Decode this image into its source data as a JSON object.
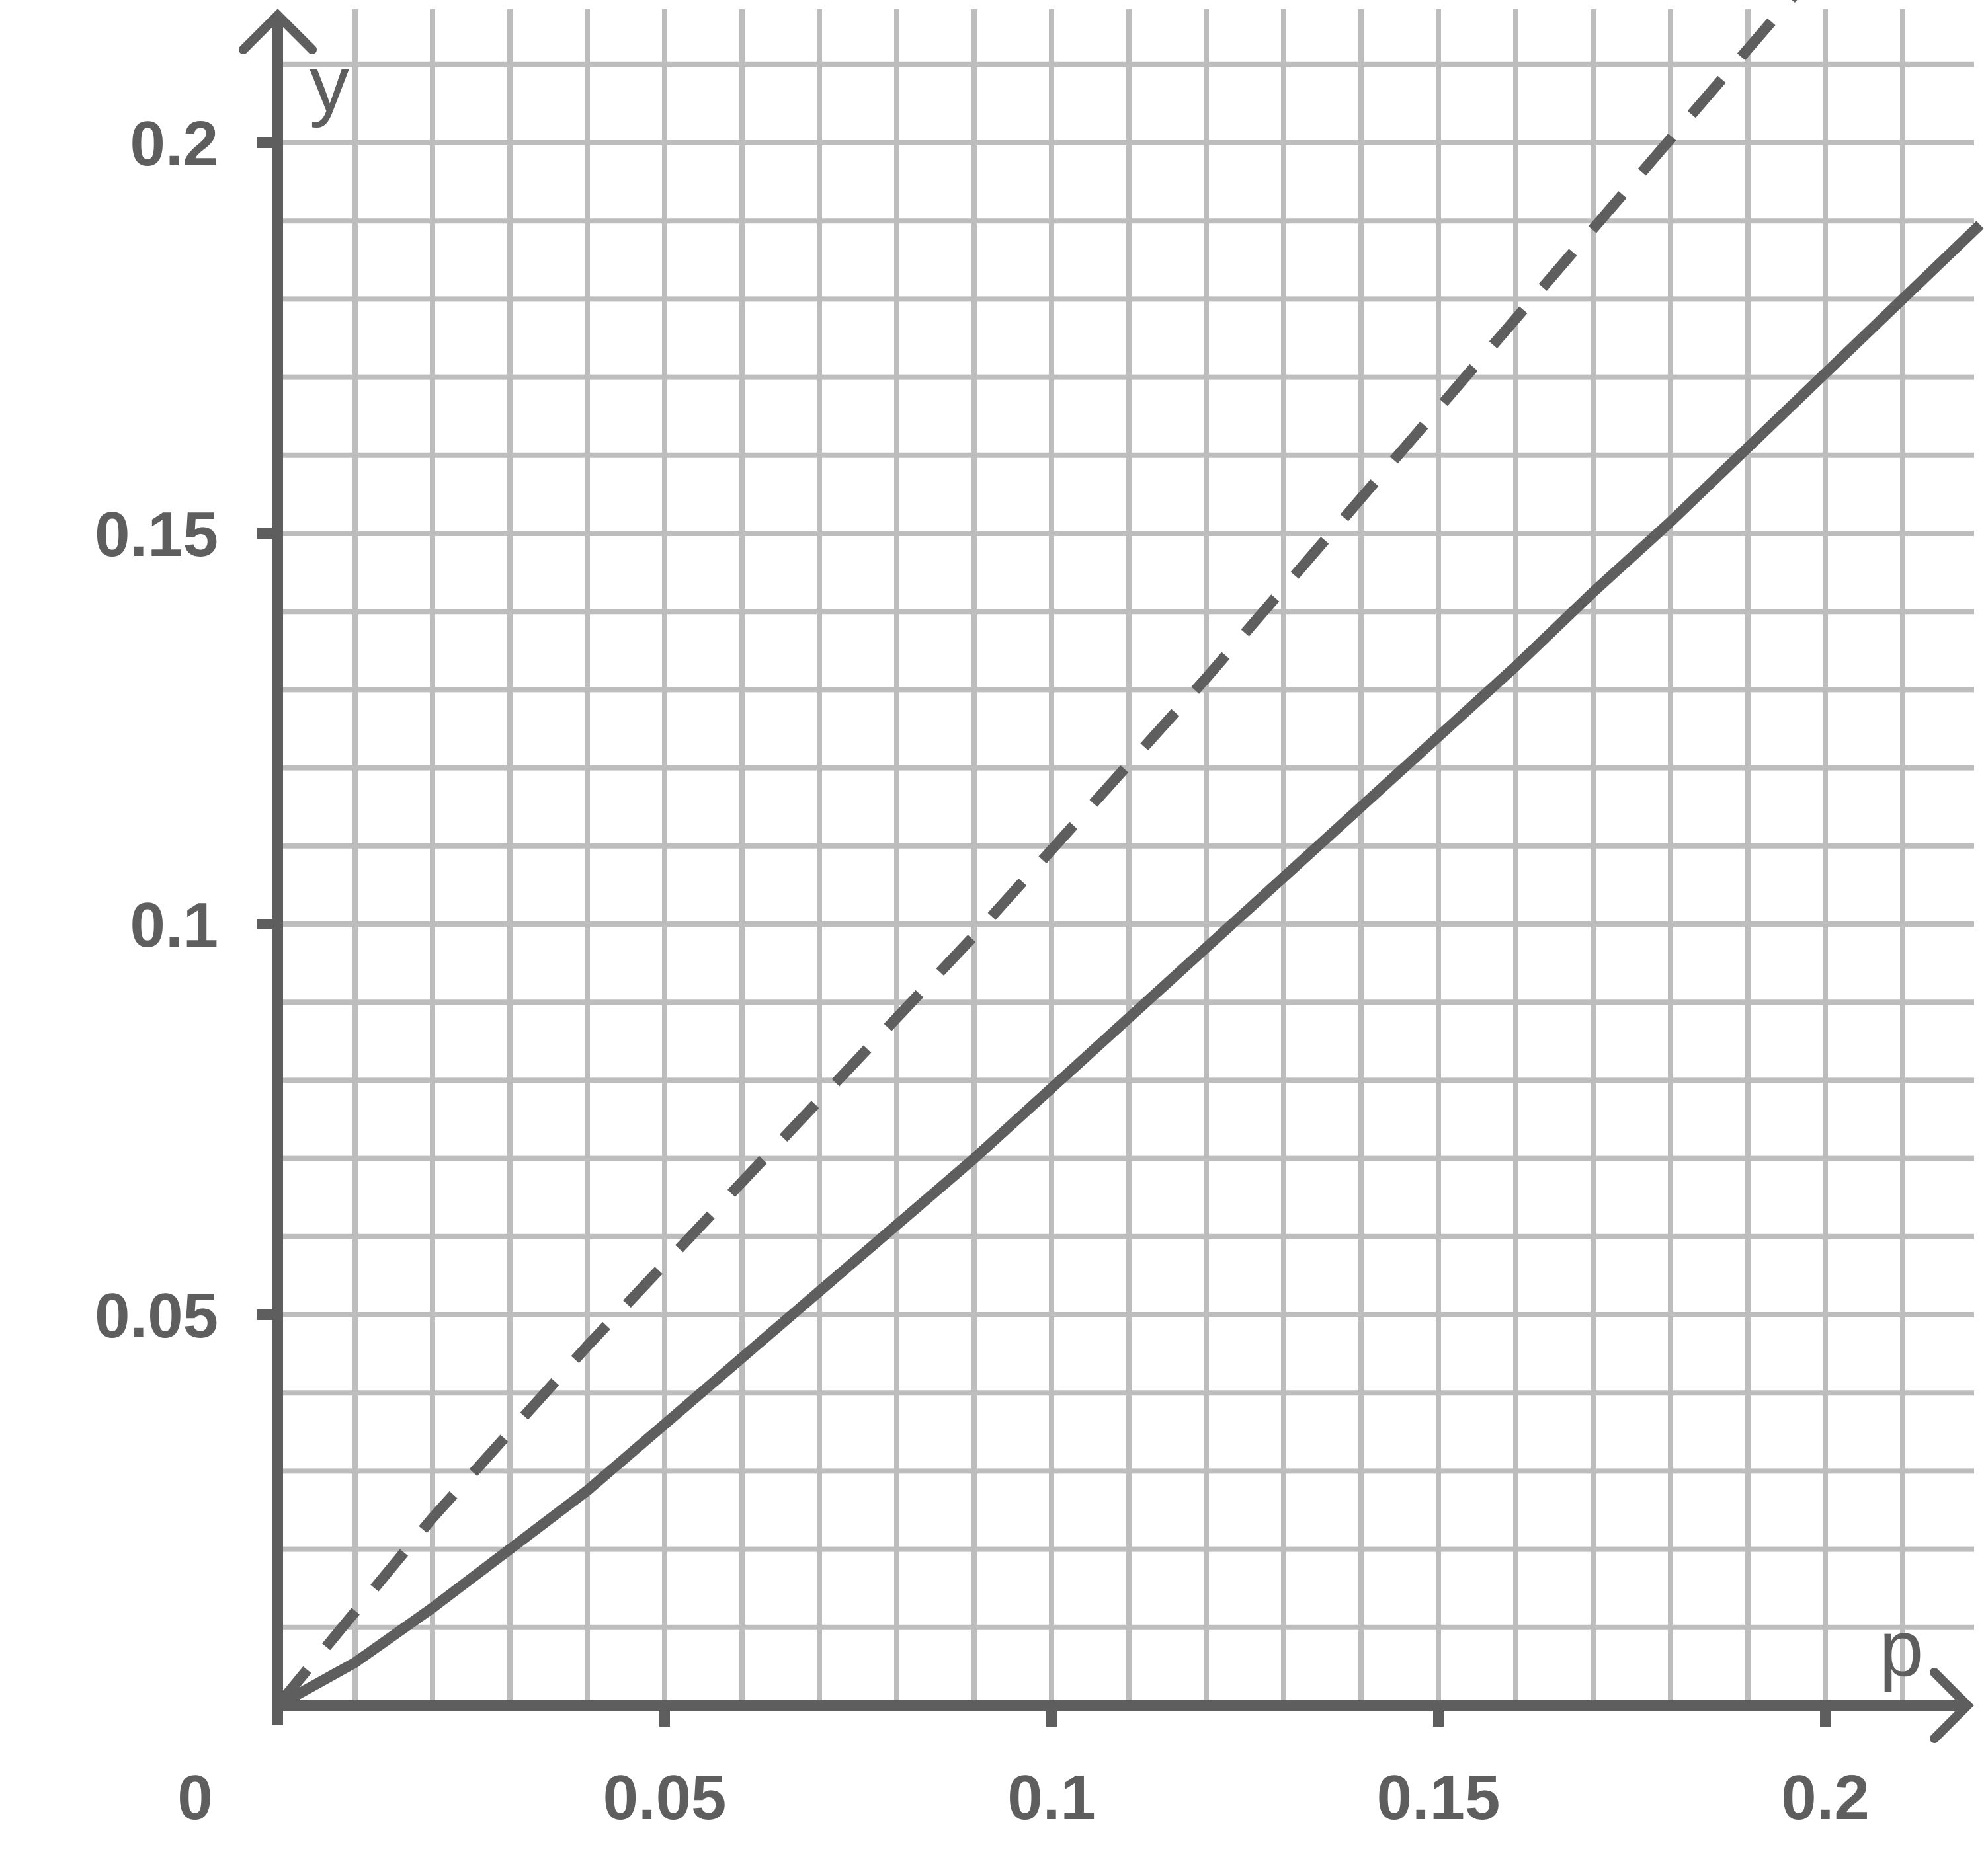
{
  "chart_data": {
    "type": "line",
    "title": "",
    "xlabel": "p",
    "ylabel": "y",
    "xlim": [
      0,
      0.22
    ],
    "ylim": [
      0,
      0.22
    ],
    "grid": true,
    "grid_minor_step": 0.01,
    "x_ticks": [
      0.05,
      0.1,
      0.15,
      0.2
    ],
    "x_tick_labels": [
      "0.05",
      "0.1",
      "0.15",
      "0.2"
    ],
    "y_ticks": [
      0.05,
      0.1,
      0.15,
      0.2
    ],
    "y_tick_labels": [
      "0.05",
      "0.1",
      "0.15",
      "0.2"
    ],
    "origin_label": "0",
    "colors": {
      "axis": "#5e5e5e",
      "grid": "#bdbdbd",
      "series": "#5e5e5e"
    },
    "series": [
      {
        "style": "solid",
        "x": [
          0,
          0.01,
          0.02,
          0.03,
          0.04,
          0.05,
          0.06,
          0.07,
          0.08,
          0.09,
          0.1,
          0.11,
          0.12,
          0.13,
          0.14,
          0.15,
          0.16,
          0.17,
          0.18,
          0.19,
          0.2,
          0.21,
          0.22
        ],
        "y": [
          0,
          0.0055,
          0.0125,
          0.02,
          0.0275,
          0.036,
          0.0445,
          0.053,
          0.0615,
          0.07,
          0.079,
          0.088,
          0.097,
          0.106,
          0.115,
          0.124,
          0.133,
          0.1425,
          0.1515,
          0.161,
          0.1705,
          0.18,
          0.1895
        ]
      },
      {
        "style": "dashed",
        "x": [
          0,
          0.01,
          0.02,
          0.03,
          0.04,
          0.05,
          0.06,
          0.07,
          0.08,
          0.09,
          0.1,
          0.11,
          0.12,
          0.13,
          0.14,
          0.15,
          0.16,
          0.17,
          0.18,
          0.19,
          0.2
        ],
        "y": [
          0,
          0.012,
          0.024,
          0.035,
          0.046,
          0.0565,
          0.067,
          0.0775,
          0.088,
          0.0985,
          0.1095,
          0.1205,
          0.1315,
          0.143,
          0.1545,
          0.166,
          0.1775,
          0.189,
          0.2005,
          0.212,
          0.2235
        ]
      }
    ]
  }
}
